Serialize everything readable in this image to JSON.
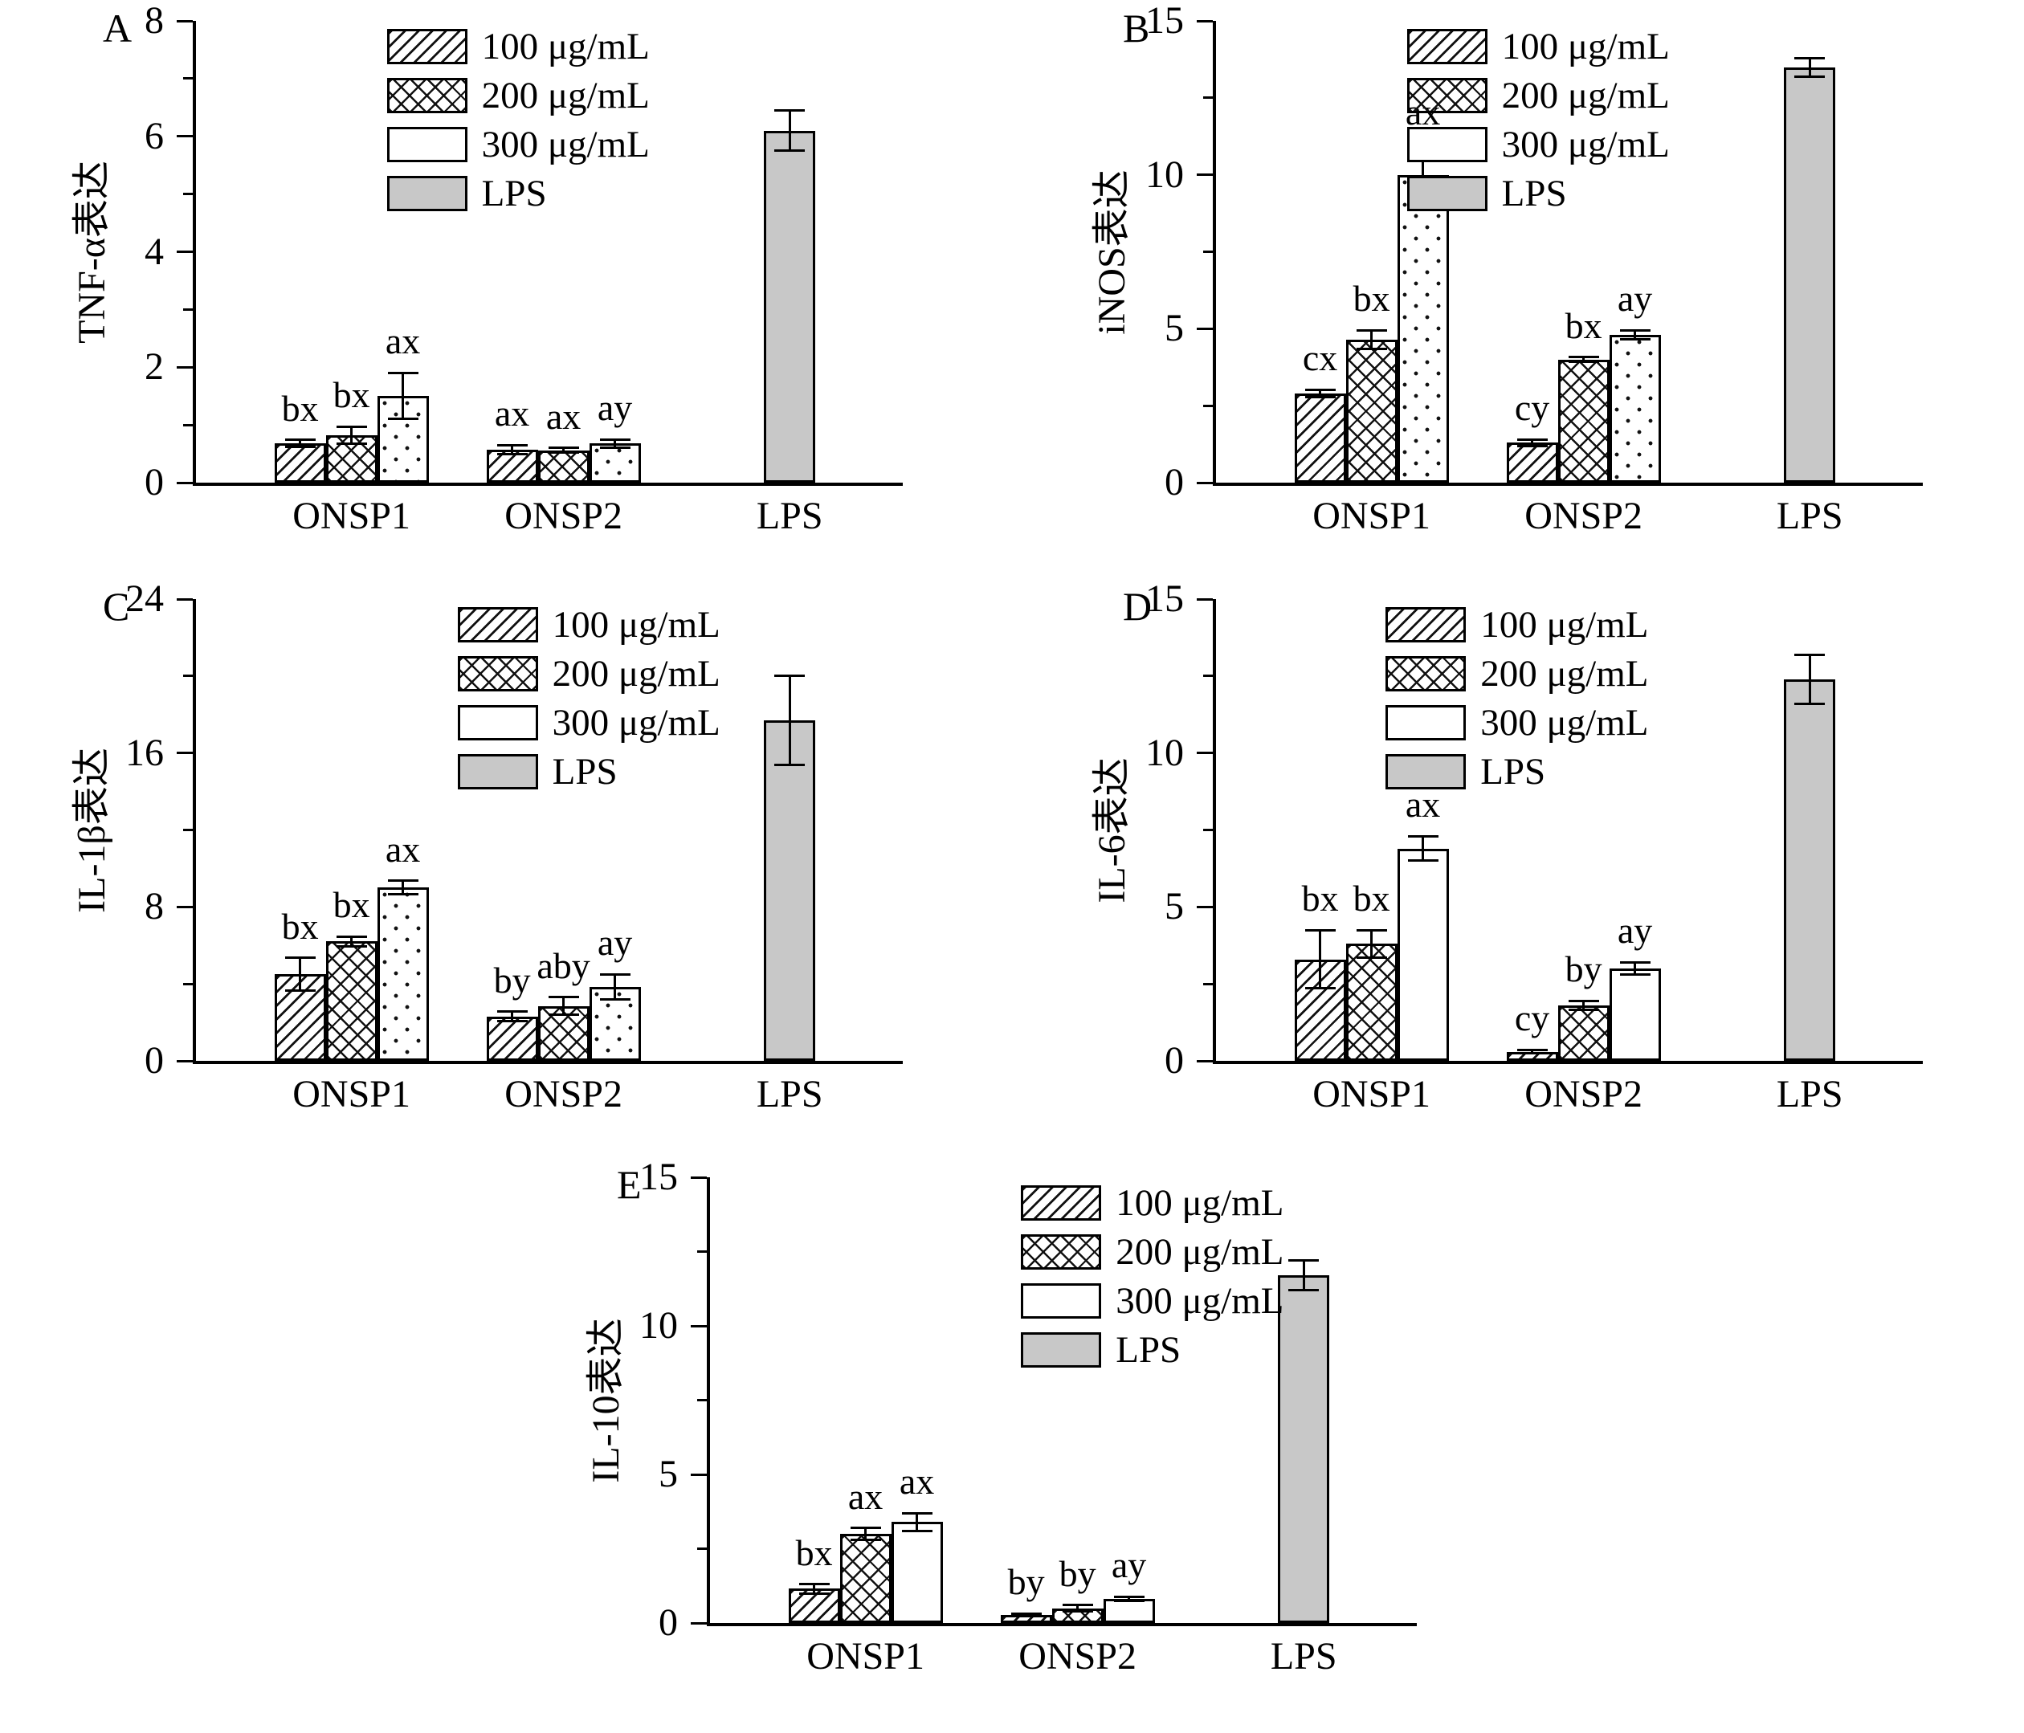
{
  "figure": {
    "background": "#ffffff",
    "axis_color": "#000000",
    "lps_fill": "#c8c8c8",
    "legend": {
      "position": "top-inside",
      "items": [
        {
          "label": "100 μg/mL",
          "pattern": "diag"
        },
        {
          "label": "200 μg/mL",
          "pattern": "cross"
        },
        {
          "label": "300 μg/mL",
          "pattern": "white"
        },
        {
          "label": "LPS",
          "pattern": "gray"
        }
      ]
    },
    "x_groups": [
      "ONSP1",
      "ONSP2",
      "LPS"
    ]
  },
  "chart_data": [
    {
      "type": "bar",
      "panel_letter": "A",
      "ylabel": "TNF-α表达",
      "ylim": [
        0,
        8
      ],
      "yticks": [
        0,
        2,
        4,
        6,
        8
      ],
      "minor_ticks": [
        1,
        3,
        5,
        7
      ],
      "grid": false,
      "legend_left": 0.27,
      "groups": [
        {
          "label": "ONSP1",
          "bars": [
            {
              "series": "100 μg/mL",
              "pattern": "diag",
              "value": 0.68,
              "error": 0.06,
              "sig": "bx"
            },
            {
              "series": "200 μg/mL",
              "pattern": "cross",
              "value": 0.82,
              "error": 0.15,
              "sig": "bx"
            },
            {
              "series": "300 μg/mL",
              "pattern": "dots",
              "value": 1.5,
              "error": 0.4,
              "sig": "ax"
            }
          ]
        },
        {
          "label": "ONSP2",
          "bars": [
            {
              "series": "100 μg/mL",
              "pattern": "diag",
              "value": 0.57,
              "error": 0.08,
              "sig": "ax"
            },
            {
              "series": "200 μg/mL",
              "pattern": "cross",
              "value": 0.56,
              "error": 0.04,
              "sig": "ax"
            },
            {
              "series": "300 μg/mL",
              "pattern": "dots",
              "value": 0.68,
              "error": 0.07,
              "sig": "ay"
            }
          ]
        },
        {
          "label": "LPS",
          "bars": [
            {
              "series": "LPS",
              "pattern": "gray",
              "value": 6.1,
              "error": 0.35,
              "sig": ""
            }
          ]
        }
      ]
    },
    {
      "type": "bar",
      "panel_letter": "B",
      "ylabel": "iNOS表达",
      "ylim": [
        0,
        15
      ],
      "yticks": [
        0,
        5,
        10,
        15
      ],
      "minor_ticks": [
        2.5,
        7.5,
        12.5
      ],
      "grid": false,
      "legend_left": 0.27,
      "groups": [
        {
          "label": "ONSP1",
          "bars": [
            {
              "series": "100 μg/mL",
              "pattern": "diag",
              "value": 2.9,
              "error": 0.12,
              "sig": "cx"
            },
            {
              "series": "200 μg/mL",
              "pattern": "cross",
              "value": 4.65,
              "error": 0.3,
              "sig": "bx"
            },
            {
              "series": "300 μg/mL",
              "pattern": "dots",
              "value": 10.0,
              "error": 1.0,
              "sig": "ax"
            }
          ]
        },
        {
          "label": "ONSP2",
          "bars": [
            {
              "series": "100 μg/mL",
              "pattern": "diag",
              "value": 1.3,
              "error": 0.1,
              "sig": "cy"
            },
            {
              "series": "200 μg/mL",
              "pattern": "cross",
              "value": 4.0,
              "error": 0.08,
              "sig": "bx"
            },
            {
              "series": "300 μg/mL",
              "pattern": "dots",
              "value": 4.8,
              "error": 0.15,
              "sig": "ay"
            }
          ]
        },
        {
          "label": "LPS",
          "bars": [
            {
              "series": "LPS",
              "pattern": "gray",
              "value": 13.5,
              "error": 0.3,
              "sig": ""
            }
          ]
        }
      ]
    },
    {
      "type": "bar",
      "panel_letter": "C",
      "ylabel": "IL-1β表达",
      "ylim": [
        0,
        24
      ],
      "yticks": [
        0,
        8,
        16,
        24
      ],
      "minor_ticks": [
        4,
        12,
        20
      ],
      "grid": false,
      "legend_left": 0.37,
      "groups": [
        {
          "label": "ONSP1",
          "bars": [
            {
              "series": "100 μg/mL",
              "pattern": "diag",
              "value": 4.5,
              "error": 0.85,
              "sig": "bx"
            },
            {
              "series": "200 μg/mL",
              "pattern": "cross",
              "value": 6.2,
              "error": 0.25,
              "sig": "bx"
            },
            {
              "series": "300 μg/mL",
              "pattern": "dots",
              "value": 9.0,
              "error": 0.35,
              "sig": "ax"
            }
          ]
        },
        {
          "label": "ONSP2",
          "bars": [
            {
              "series": "100 μg/mL",
              "pattern": "diag",
              "value": 2.3,
              "error": 0.25,
              "sig": "by"
            },
            {
              "series": "200 μg/mL",
              "pattern": "cross",
              "value": 2.85,
              "error": 0.45,
              "sig": "aby"
            },
            {
              "series": "300 μg/mL",
              "pattern": "dots",
              "value": 3.85,
              "error": 0.65,
              "sig": "ay"
            }
          ]
        },
        {
          "label": "LPS",
          "bars": [
            {
              "series": "LPS",
              "pattern": "gray",
              "value": 17.7,
              "error": 2.3,
              "sig": ""
            }
          ]
        }
      ]
    },
    {
      "type": "bar",
      "panel_letter": "D",
      "ylabel": "IL-6表达",
      "ylim": [
        0,
        15
      ],
      "yticks": [
        0,
        5,
        10,
        15
      ],
      "minor_ticks": [
        2.5,
        7.5,
        12.5
      ],
      "grid": false,
      "legend_left": 0.24,
      "groups": [
        {
          "label": "ONSP1",
          "bars": [
            {
              "series": "100 μg/mL",
              "pattern": "diag",
              "value": 3.3,
              "error": 0.95,
              "sig": "bx"
            },
            {
              "series": "200 μg/mL",
              "pattern": "cross",
              "value": 3.8,
              "error": 0.45,
              "sig": "bx"
            },
            {
              "series": "300 μg/mL",
              "pattern": "white",
              "value": 6.9,
              "error": 0.4,
              "sig": "ax"
            }
          ]
        },
        {
          "label": "ONSP2",
          "bars": [
            {
              "series": "100 μg/mL",
              "pattern": "diag",
              "value": 0.3,
              "error": 0.06,
              "sig": "cy"
            },
            {
              "series": "200 μg/mL",
              "pattern": "cross",
              "value": 1.8,
              "error": 0.15,
              "sig": "by"
            },
            {
              "series": "300 μg/mL",
              "pattern": "white",
              "value": 3.0,
              "error": 0.2,
              "sig": "ay"
            }
          ]
        },
        {
          "label": "LPS",
          "bars": [
            {
              "series": "LPS",
              "pattern": "gray",
              "value": 12.4,
              "error": 0.8,
              "sig": ""
            }
          ]
        }
      ]
    },
    {
      "type": "bar",
      "panel_letter": "E",
      "ylabel": "IL-10表达",
      "ylim": [
        0,
        15
      ],
      "yticks": [
        0,
        5,
        10,
        15
      ],
      "minor_ticks": [
        2.5,
        7.5,
        12.5
      ],
      "grid": false,
      "legend_left": 0.44,
      "groups": [
        {
          "label": "ONSP1",
          "bars": [
            {
              "series": "100 μg/mL",
              "pattern": "diag",
              "value": 1.15,
              "error": 0.15,
              "sig": "bx"
            },
            {
              "series": "200 μg/mL",
              "pattern": "cross",
              "value": 3.0,
              "error": 0.2,
              "sig": "ax"
            },
            {
              "series": "300 μg/mL",
              "pattern": "white",
              "value": 3.4,
              "error": 0.3,
              "sig": "ax"
            }
          ]
        },
        {
          "label": "ONSP2",
          "bars": [
            {
              "series": "100 μg/mL",
              "pattern": "diag",
              "value": 0.27,
              "error": 0.05,
              "sig": "by"
            },
            {
              "series": "200 μg/mL",
              "pattern": "cross",
              "value": 0.5,
              "error": 0.1,
              "sig": "by"
            },
            {
              "series": "300 μg/mL",
              "pattern": "white",
              "value": 0.82,
              "error": 0.07,
              "sig": "ay"
            }
          ]
        },
        {
          "label": "LPS",
          "bars": [
            {
              "series": "LPS",
              "pattern": "gray",
              "value": 11.7,
              "error": 0.5,
              "sig": ""
            }
          ]
        }
      ]
    }
  ]
}
